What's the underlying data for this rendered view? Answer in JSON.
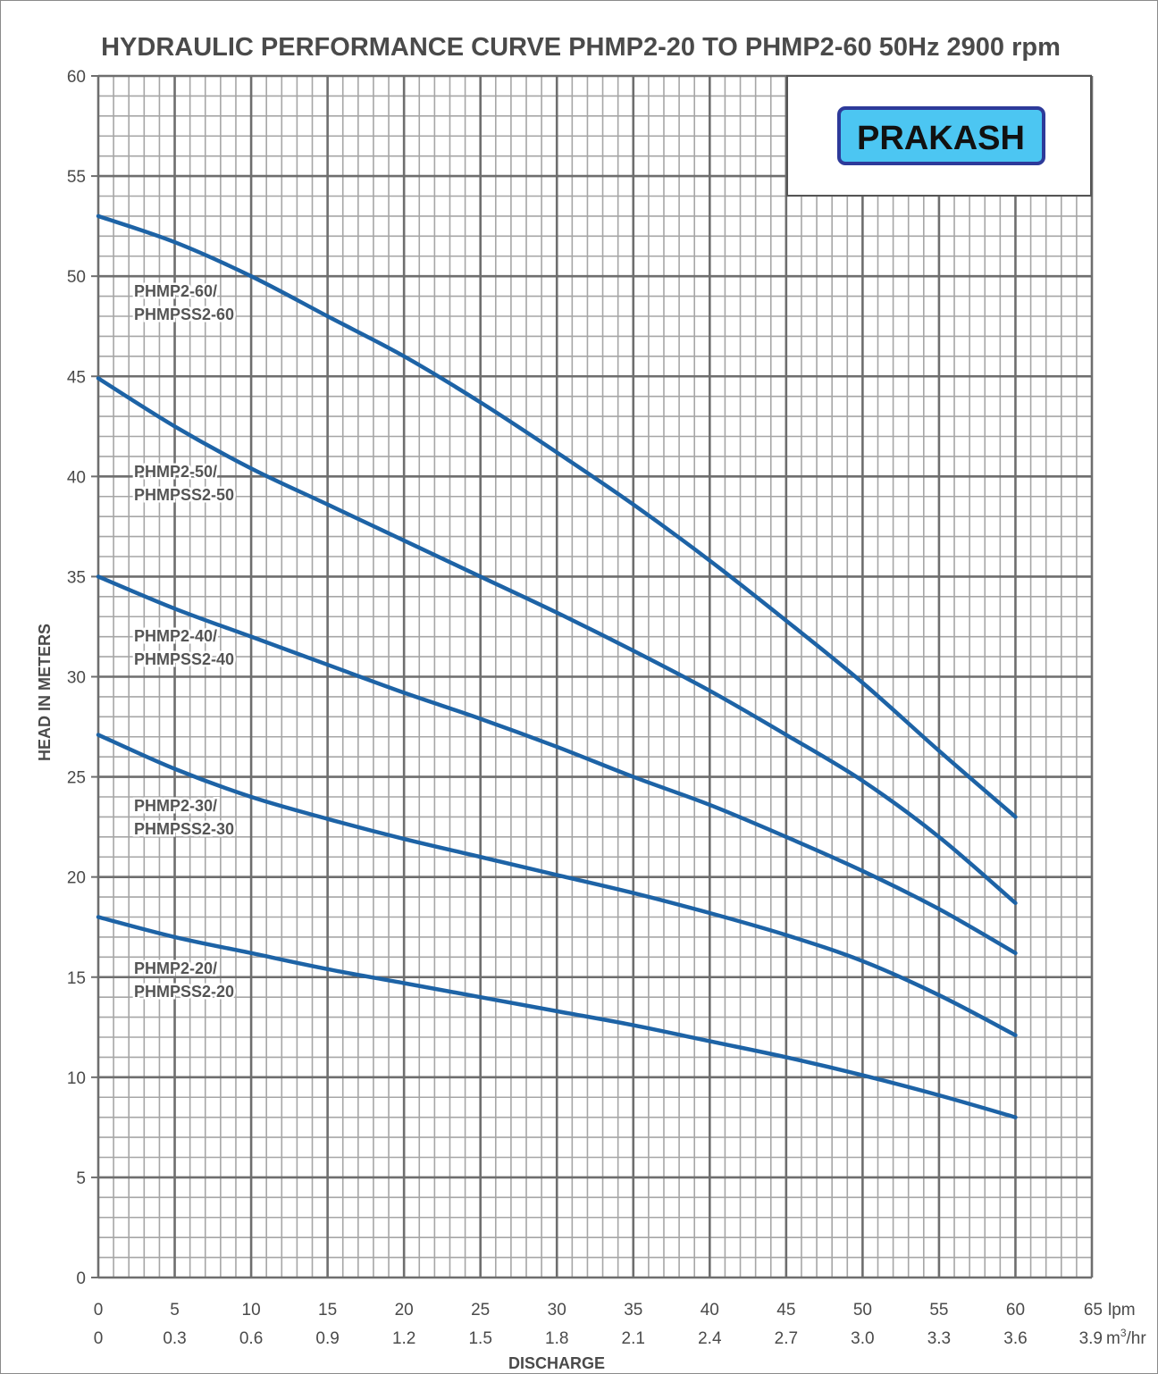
{
  "chart_data": {
    "type": "line",
    "title": "HYDRAULIC PERFORMANCE CURVE PHMP2-20 TO PHMP2-60 50Hz 2900 rpm",
    "xlabel": "DISCHARGE",
    "ylabel": "HEAD IN METERS",
    "xlim": [
      0,
      65
    ],
    "ylim": [
      0,
      60
    ],
    "grid": true,
    "x_ticks_lpm": [
      "0",
      "5",
      "10",
      "15",
      "20",
      "25",
      "30",
      "35",
      "40",
      "45",
      "50",
      "55",
      "60",
      "65"
    ],
    "x_unit_lpm": "lpm",
    "x_ticks_m3hr": [
      "0",
      "0.3",
      "0.6",
      "0.9",
      "1.2",
      "1.5",
      "1.8",
      "2.1",
      "2.4",
      "2.7",
      "3.0",
      "3.3",
      "3.6",
      "3.9"
    ],
    "x_unit_m3hr_base": "m",
    "x_unit_m3hr_sup": "3",
    "x_unit_m3hr_tail": "/hr",
    "y_ticks": [
      "60",
      "55",
      "50",
      "45",
      "40",
      "35",
      "30",
      "25",
      "20",
      "15",
      "10",
      "5",
      "0"
    ],
    "x": [
      0,
      5,
      10,
      15,
      20,
      25,
      30,
      35,
      40,
      45,
      50,
      55,
      60
    ],
    "series": [
      {
        "name": [
          "PHMP2-60/",
          "PHMPSS2-60"
        ],
        "values": [
          53,
          51.7,
          50,
          48,
          46,
          43.7,
          41.2,
          38.6,
          35.8,
          32.8,
          29.7,
          26.3,
          23
        ]
      },
      {
        "name": [
          "PHMP2-50/",
          "PHMPSS2-50"
        ],
        "values": [
          44.9,
          42.5,
          40.4,
          38.6,
          36.8,
          35,
          33.2,
          31.3,
          29.3,
          27.1,
          24.8,
          22,
          18.7
        ]
      },
      {
        "name": [
          "PHMP2-40/",
          "PHMPSS2-40"
        ],
        "values": [
          35,
          33.4,
          32,
          30.6,
          29.2,
          27.9,
          26.5,
          25,
          23.6,
          22,
          20.3,
          18.4,
          16.2
        ]
      },
      {
        "name": [
          "PHMP2-30/",
          "PHMPSS2-30"
        ],
        "values": [
          27.1,
          25.4,
          24,
          22.9,
          21.9,
          21,
          20.1,
          19.2,
          18.2,
          17.1,
          15.8,
          14.1,
          12.1
        ]
      },
      {
        "name": [
          "PHMP2-20/",
          "PHMPSS2-20"
        ],
        "values": [
          18,
          17,
          16.2,
          15.4,
          14.7,
          14,
          13.3,
          12.6,
          11.8,
          11,
          10.1,
          9.1,
          8
        ]
      }
    ],
    "line_color": "#1d63a6"
  },
  "logo": {
    "text": "PRAKASH",
    "fill": "#4cc6f2",
    "border": "#2d3a9a"
  }
}
